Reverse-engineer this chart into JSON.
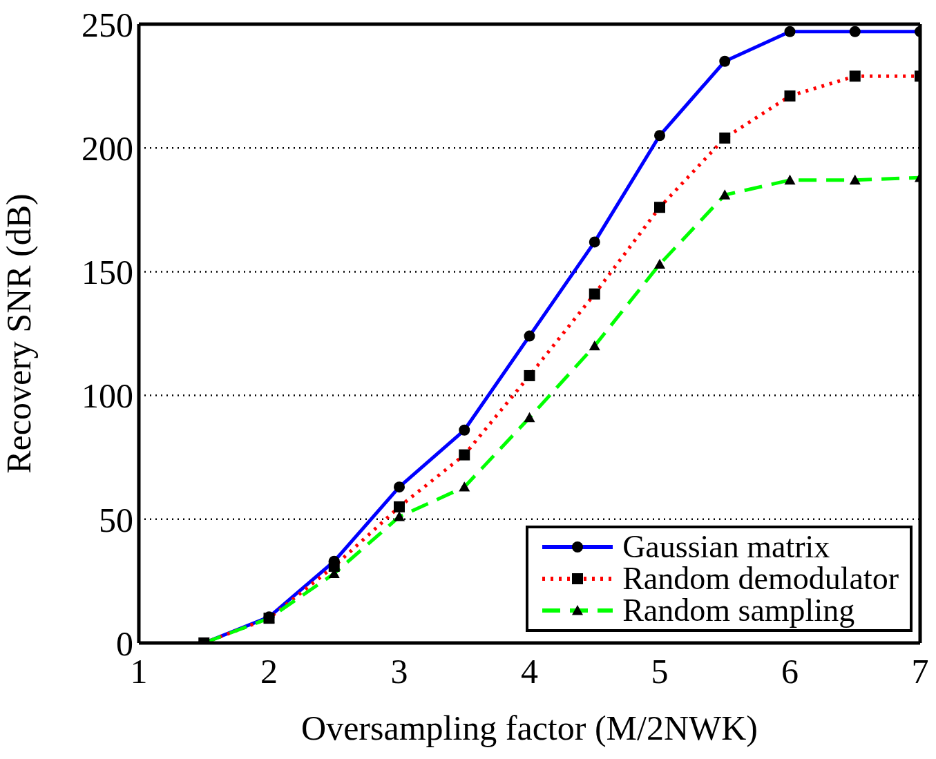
{
  "chart_data": {
    "type": "line",
    "xlabel": "Oversampling factor (M/2NWK)",
    "ylabel": "Recovery SNR (dB)",
    "x": [
      1.5,
      2,
      2.5,
      3,
      3.5,
      4,
      4.5,
      5,
      5.5,
      6,
      6.5,
      7
    ],
    "series": [
      {
        "name": "Gaussian matrix",
        "color": "#0000ff",
        "marker": "circle",
        "line_style": "solid",
        "values": [
          0,
          10.5,
          33,
          63,
          86,
          124,
          162,
          205,
          235,
          247,
          247,
          247
        ]
      },
      {
        "name": "Random demodulator",
        "color": "#ff0000",
        "marker": "square",
        "line_style": "dotted",
        "values": [
          0,
          10,
          31,
          55,
          76,
          108,
          141,
          176,
          204,
          221,
          229,
          229
        ]
      },
      {
        "name": "Random sampling",
        "color": "#00ff00",
        "marker": "triangle",
        "line_style": "dashed",
        "values": [
          0,
          10,
          28,
          51,
          63,
          91,
          120,
          153,
          181,
          187,
          187,
          188
        ]
      }
    ],
    "xlim": [
      1,
      7
    ],
    "xticks": [
      1,
      2,
      3,
      4,
      5,
      6,
      7
    ],
    "ylim": [
      0,
      250
    ],
    "yticks": [
      0,
      50,
      100,
      150,
      200,
      250
    ],
    "grid": "y",
    "legend": "bottom right"
  }
}
